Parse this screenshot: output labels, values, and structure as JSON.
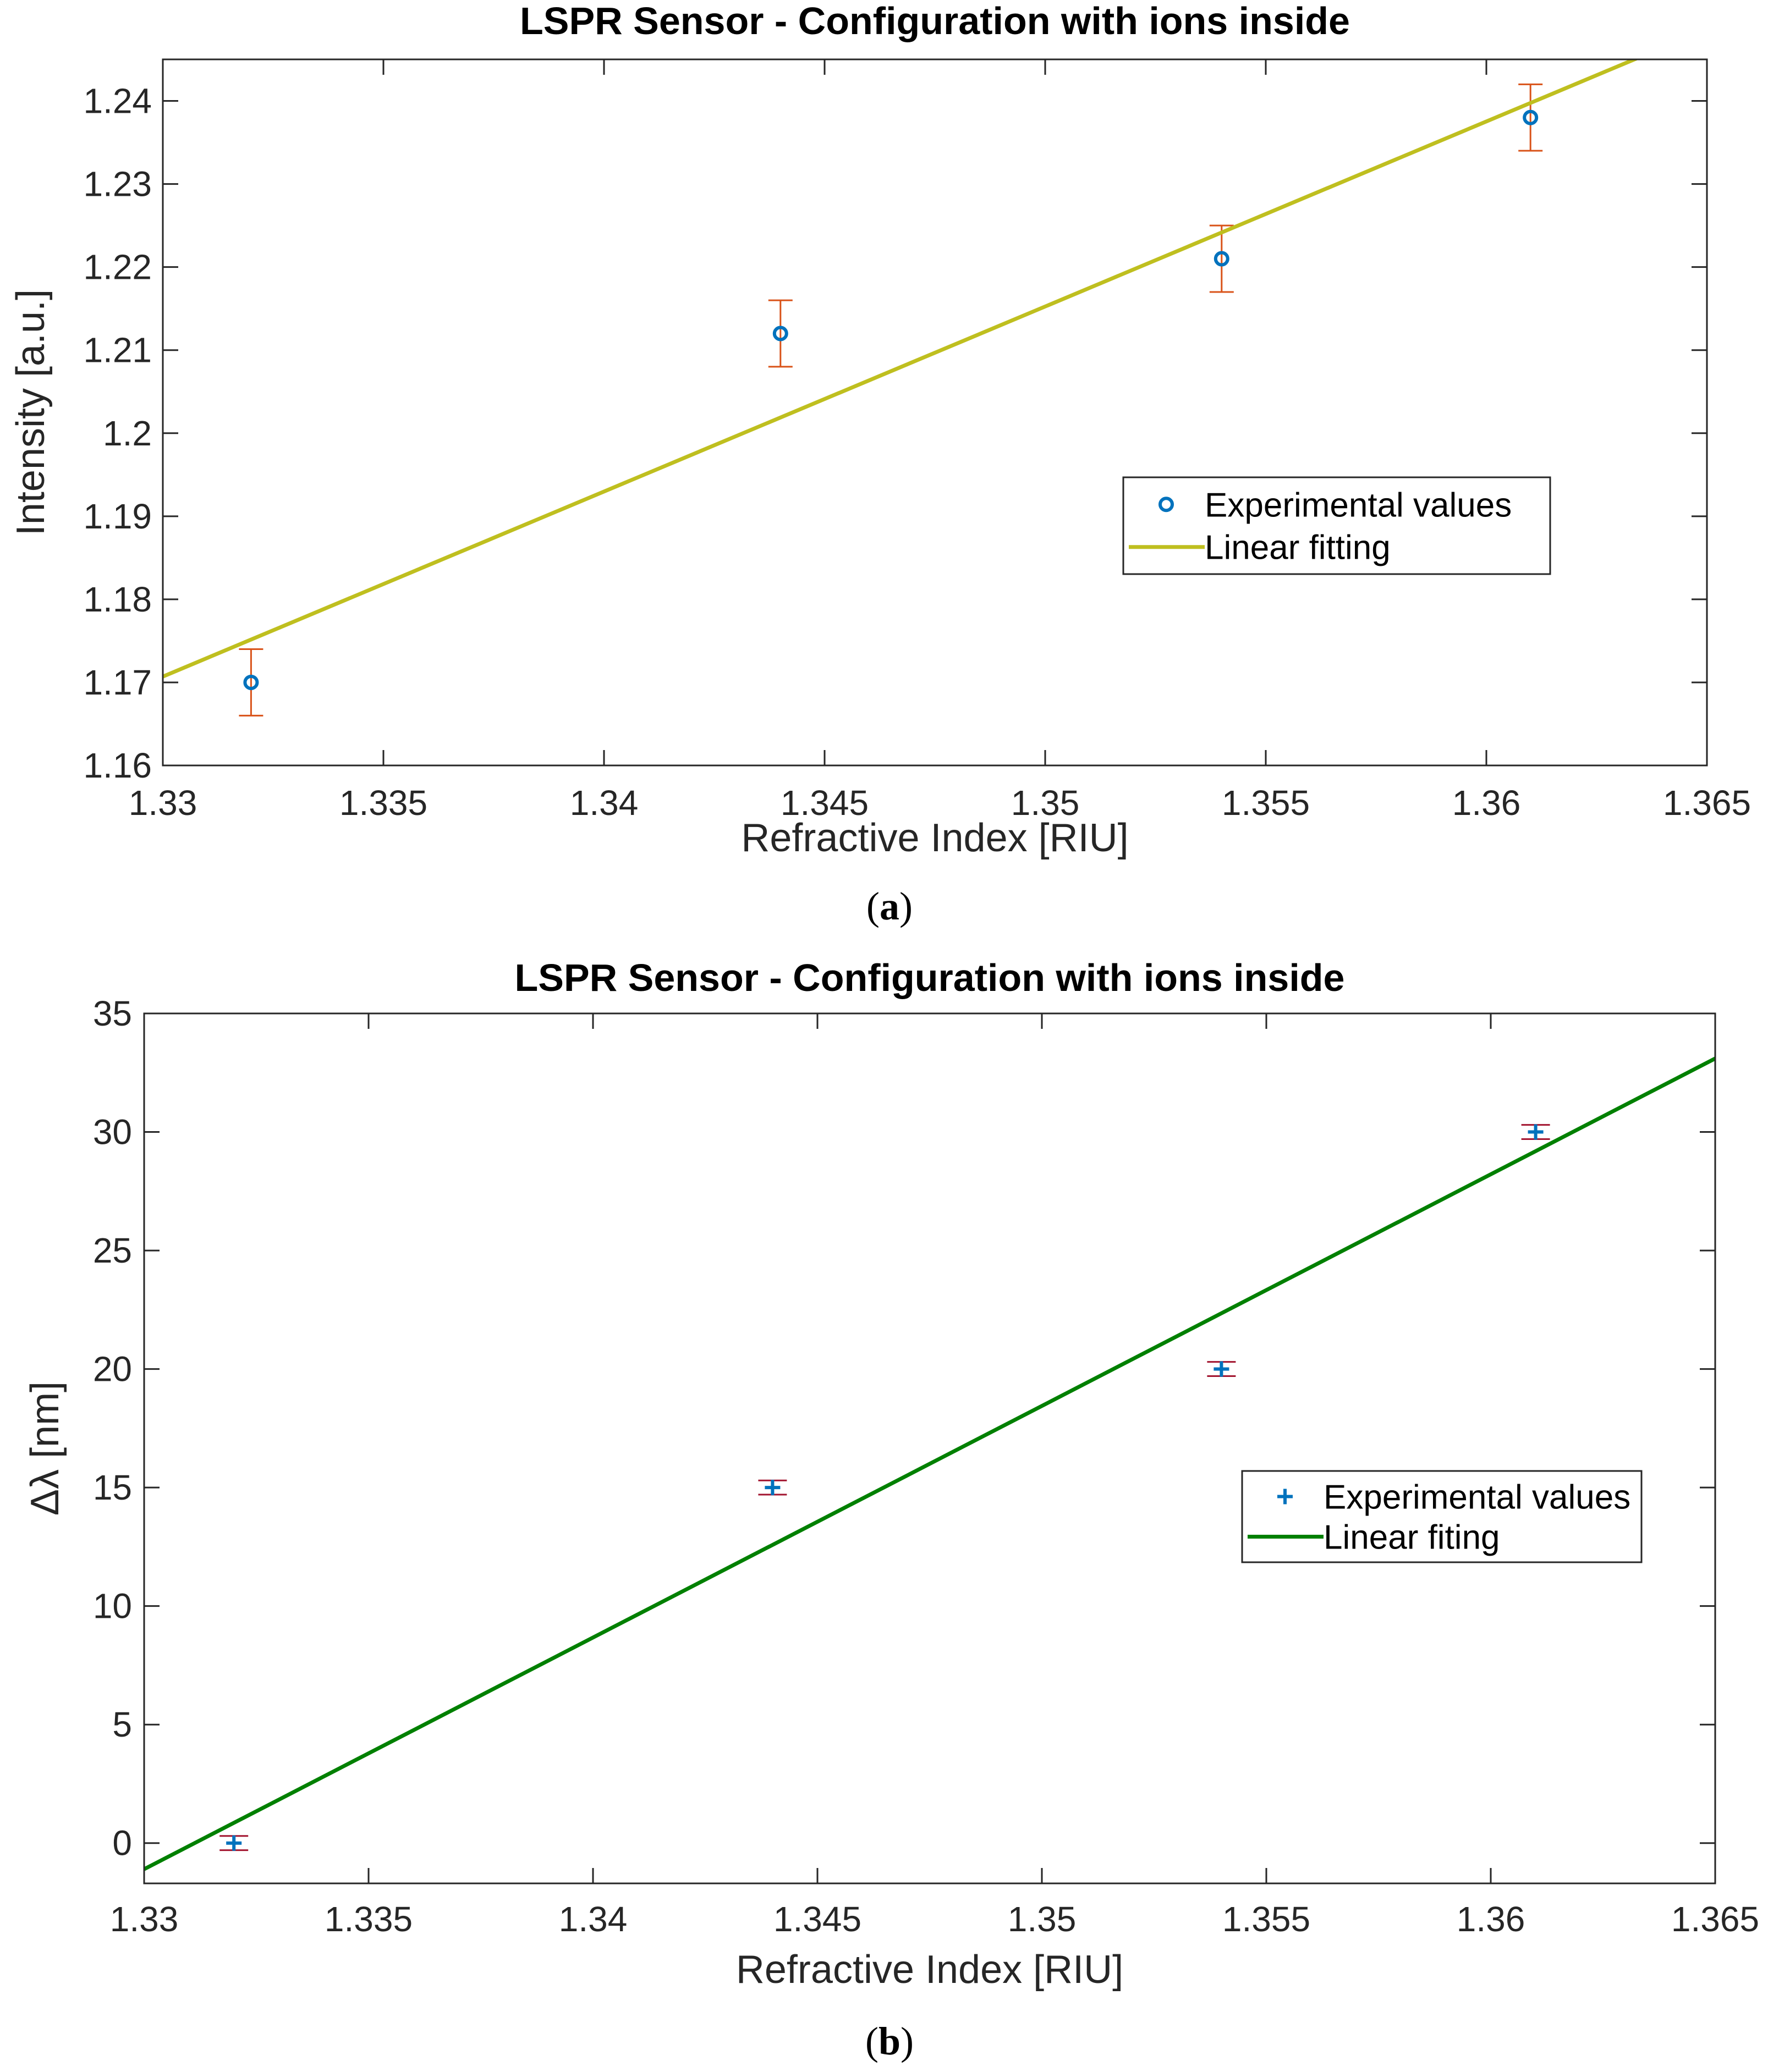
{
  "chart_data": [
    {
      "type": "scatter",
      "title": "LSPR Sensor - Configuration with ions inside",
      "xlabel": "Refractive Index [RIU]",
      "ylabel": "Intensity [a.u.]",
      "xlim": [
        1.33,
        1.365
      ],
      "ylim": [
        1.16,
        1.245
      ],
      "xticks": [
        "1.33",
        "1.335",
        "1.34",
        "1.345",
        "1.35",
        "1.355",
        "1.36",
        "1.365"
      ],
      "yticks": [
        "1.16",
        "1.17",
        "1.18",
        "1.19",
        "1.2",
        "1.21",
        "1.22",
        "1.23",
        "1.24"
      ],
      "grid": false,
      "legend_position": "center-right",
      "series": [
        {
          "name": "Experimental values",
          "marker": "circle",
          "color": "#0072BD",
          "error_color": "#D95319",
          "x": [
            1.332,
            1.344,
            1.354,
            1.361
          ],
          "y": [
            1.17,
            1.212,
            1.221,
            1.238
          ],
          "error": [
            0.004,
            0.004,
            0.004,
            0.004
          ]
        },
        {
          "name": "Linear fitting",
          "line": true,
          "color": "#BFBF1F",
          "x": [
            1.33,
            1.3634
          ],
          "y": [
            1.1707,
            1.2451
          ]
        }
      ],
      "caption_letter": "a"
    },
    {
      "type": "scatter",
      "title": "LSPR Sensor - Configuration with ions inside",
      "xlabel": "Refractive Index [RIU]",
      "ylabel": "Δλ [nm]",
      "xlim": [
        1.33,
        1.365
      ],
      "ylim": [
        -1.7,
        35
      ],
      "xticks": [
        "1.33",
        "1.335",
        "1.34",
        "1.345",
        "1.35",
        "1.355",
        "1.36",
        "1.365"
      ],
      "yticks": [
        "0",
        "5",
        "10",
        "15",
        "20",
        "25",
        "30",
        "35"
      ],
      "grid": false,
      "legend_position": "center-right",
      "series": [
        {
          "name": "Experimental values",
          "marker": "plus",
          "color": "#0072BD",
          "error_color": "#A2142F",
          "x": [
            1.332,
            1.344,
            1.354,
            1.361
          ],
          "y": [
            0,
            15,
            20,
            30
          ],
          "error": [
            0.3,
            0.3,
            0.3,
            0.3
          ]
        },
        {
          "name": "Linear fiting",
          "line": true,
          "color": "#008000",
          "x": [
            1.33,
            1.365
          ],
          "y": [
            -1.1,
            33.1
          ]
        }
      ],
      "caption_letter": "b"
    }
  ]
}
